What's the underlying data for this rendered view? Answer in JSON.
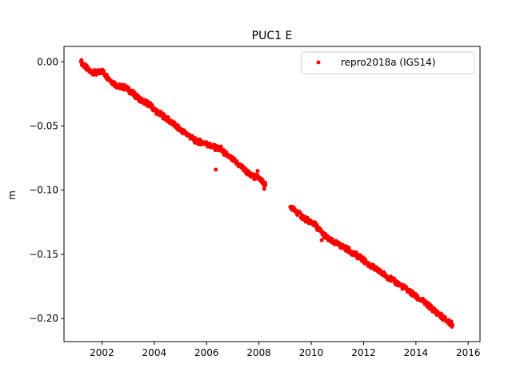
{
  "chart_data": {
    "type": "scatter",
    "title": "PUC1 E",
    "xlabel": "",
    "ylabel": "m",
    "xlim": [
      2000.55,
      2016.45
    ],
    "ylim": [
      -0.218,
      0.012
    ],
    "xticks": [
      2002,
      2004,
      2006,
      2008,
      2010,
      2012,
      2014,
      2016
    ],
    "yticks": [
      0.0,
      -0.05,
      -0.1,
      -0.15,
      -0.2
    ],
    "ytick_labels": [
      "0.00",
      "−0.05",
      "−0.10",
      "−0.15",
      "−0.20"
    ],
    "grid": false,
    "legend": {
      "position": "top-right"
    },
    "series": [
      {
        "name": "repro2018a (IGS14)",
        "color": "#ff0000",
        "marker": "circle",
        "segments": [
          {
            "x": [
              2001.2,
              2001.5,
              2001.8,
              2002.0,
              2002.3,
              2002.6,
              2002.9,
              2003.2,
              2003.5,
              2003.8,
              2004.1,
              2004.4,
              2004.7,
              2005.0,
              2005.3,
              2005.6,
              2005.9,
              2006.2,
              2006.5,
              2006.8,
              2007.1,
              2007.4,
              2007.7,
              2008.0,
              2008.25
            ],
            "y": [
              0.0,
              -0.007,
              -0.009,
              -0.007,
              -0.014,
              -0.019,
              -0.02,
              -0.025,
              -0.03,
              -0.033,
              -0.039,
              -0.043,
              -0.048,
              -0.053,
              -0.057,
              -0.062,
              -0.063,
              -0.066,
              -0.068,
              -0.073,
              -0.078,
              -0.083,
              -0.089,
              -0.09,
              -0.096
            ]
          },
          {
            "x": [
              2009.2,
              2009.5,
              2009.8,
              2010.1,
              2010.4,
              2010.7,
              2011.0,
              2011.3,
              2011.6,
              2011.9,
              2012.2,
              2012.5,
              2012.8,
              2013.1,
              2013.4,
              2013.7,
              2014.0,
              2014.3,
              2014.6,
              2014.9,
              2015.2,
              2015.4
            ],
            "y": [
              -0.113,
              -0.118,
              -0.123,
              -0.126,
              -0.133,
              -0.139,
              -0.142,
              -0.145,
              -0.149,
              -0.153,
              -0.158,
              -0.162,
              -0.166,
              -0.17,
              -0.174,
              -0.178,
              -0.183,
              -0.187,
              -0.192,
              -0.197,
              -0.202,
              -0.205
            ]
          }
        ],
        "outliers": {
          "x": [
            2006.35,
            2006.55,
            2007.95,
            2008.2,
            2010.4
          ],
          "y": [
            -0.084,
            -0.066,
            -0.085,
            -0.099,
            -0.139
          ]
        }
      }
    ]
  }
}
